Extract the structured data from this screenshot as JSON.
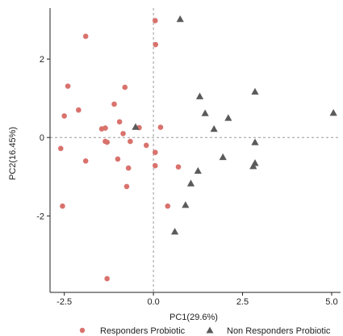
{
  "chart_data": {
    "type": "scatter",
    "xlabel": "PC1(29.6%)",
    "ylabel": "PC2(16.45%)",
    "xlim": [
      -2.9,
      5.25
    ],
    "ylim": [
      -3.95,
      3.3
    ],
    "x_ticks": [
      -2.5,
      0.0,
      2.5,
      5.0
    ],
    "x_tick_labels": [
      "-2.5",
      "0.0",
      "2.5",
      "5.0"
    ],
    "y_ticks": [
      -2,
      0,
      2
    ],
    "y_tick_labels": [
      "-2",
      "0",
      "2"
    ],
    "grid": false,
    "reference_lines": {
      "x": 0,
      "y": 0,
      "style": "dashed"
    },
    "legend_position": "bottom",
    "series": [
      {
        "name": "Responders Probiotic",
        "marker": "circle",
        "color": "#d9726d",
        "points": [
          [
            -1.9,
            2.58
          ],
          [
            0.05,
            2.98
          ],
          [
            0.06,
            2.37
          ],
          [
            -2.4,
            1.31
          ],
          [
            -0.8,
            1.28
          ],
          [
            -2.5,
            0.55
          ],
          [
            -2.1,
            0.7
          ],
          [
            -1.1,
            0.85
          ],
          [
            -1.45,
            0.22
          ],
          [
            -1.35,
            0.24
          ],
          [
            -0.95,
            0.4
          ],
          [
            -0.4,
            0.25
          ],
          [
            0.2,
            0.26
          ],
          [
            -0.85,
            0.1
          ],
          [
            -1.35,
            -0.1
          ],
          [
            -1.3,
            -0.12
          ],
          [
            -0.65,
            -0.1
          ],
          [
            -0.2,
            -0.2
          ],
          [
            -2.6,
            -0.28
          ],
          [
            0.05,
            -0.38
          ],
          [
            -1.0,
            -0.55
          ],
          [
            -1.9,
            -0.6
          ],
          [
            0.05,
            -0.72
          ],
          [
            -0.7,
            -0.78
          ],
          [
            0.7,
            -0.75
          ],
          [
            -0.75,
            -1.25
          ],
          [
            0.4,
            -1.75
          ],
          [
            -2.55,
            -1.75
          ],
          [
            -1.3,
            -3.6
          ]
        ]
      },
      {
        "name": "Non Responders Probiotic",
        "marker": "triangle",
        "color": "#5a5a5a",
        "points": [
          [
            0.75,
            3.02
          ],
          [
            1.3,
            1.05
          ],
          [
            2.85,
            1.17
          ],
          [
            1.45,
            0.62
          ],
          [
            2.1,
            0.5
          ],
          [
            5.05,
            0.63
          ],
          [
            1.7,
            0.22
          ],
          [
            -0.5,
            0.27
          ],
          [
            2.85,
            -0.12
          ],
          [
            1.95,
            -0.5
          ],
          [
            2.85,
            -0.65
          ],
          [
            2.8,
            -0.73
          ],
          [
            1.25,
            -0.85
          ],
          [
            1.05,
            -1.17
          ],
          [
            0.9,
            -1.72
          ],
          [
            0.6,
            -2.4
          ]
        ]
      }
    ]
  }
}
